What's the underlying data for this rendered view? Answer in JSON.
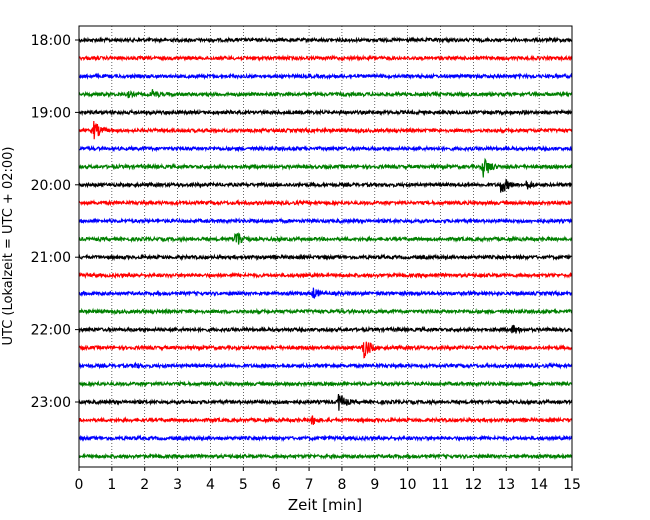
{
  "chart_data": {
    "type": "line",
    "title": "",
    "xlabel": "Zeit  [min]",
    "ylabel": "UTC (Lokalzeit = UTC + 02:00)",
    "xlim": [
      0,
      15
    ],
    "x_ticks": [
      "0",
      "1",
      "2",
      "3",
      "4",
      "5",
      "6",
      "7",
      "8",
      "9",
      "10",
      "11",
      "12",
      "13",
      "14",
      "15"
    ],
    "y_ticks": [
      "18:00",
      "19:00",
      "20:00",
      "21:00",
      "22:00",
      "23:00"
    ],
    "grid": "vertical dotted",
    "trace_colors": [
      "#000000",
      "#ff0000",
      "#0000ff",
      "#008000"
    ],
    "traces": [
      {
        "start": "18:00",
        "color": "#000000",
        "events": []
      },
      {
        "start": "18:15",
        "color": "#ff0000",
        "events": []
      },
      {
        "start": "18:30",
        "color": "#0000ff",
        "events": []
      },
      {
        "start": "18:45",
        "color": "#008000",
        "events": [
          {
            "t": 1.5,
            "amp": 4
          },
          {
            "t": 2.2,
            "amp": 6
          }
        ]
      },
      {
        "start": "19:00",
        "color": "#000000",
        "events": []
      },
      {
        "start": "19:15",
        "color": "#ff0000",
        "events": [
          {
            "t": 0.45,
            "amp": 10
          }
        ]
      },
      {
        "start": "19:30",
        "color": "#0000ff",
        "events": []
      },
      {
        "start": "19:45",
        "color": "#008000",
        "events": [
          {
            "t": 12.3,
            "amp": 12
          }
        ]
      },
      {
        "start": "20:00",
        "color": "#000000",
        "events": [
          {
            "t": 12.85,
            "amp": 10
          },
          {
            "t": 13.6,
            "amp": 6
          }
        ]
      },
      {
        "start": "20:15",
        "color": "#ff0000",
        "events": []
      },
      {
        "start": "20:30",
        "color": "#0000ff",
        "events": []
      },
      {
        "start": "20:45",
        "color": "#008000",
        "events": [
          {
            "t": 4.75,
            "amp": 11
          }
        ]
      },
      {
        "start": "21:00",
        "color": "#000000",
        "events": []
      },
      {
        "start": "21:15",
        "color": "#ff0000",
        "events": []
      },
      {
        "start": "21:30",
        "color": "#0000ff",
        "events": [
          {
            "t": 7.1,
            "amp": 7
          },
          {
            "t": 11.8,
            "amp": 3
          }
        ]
      },
      {
        "start": "21:45",
        "color": "#008000",
        "events": []
      },
      {
        "start": "22:00",
        "color": "#000000",
        "events": [
          {
            "t": 13.2,
            "amp": 6
          }
        ]
      },
      {
        "start": "22:15",
        "color": "#ff0000",
        "events": [
          {
            "t": 8.65,
            "amp": 12
          }
        ]
      },
      {
        "start": "22:30",
        "color": "#0000ff",
        "events": [
          {
            "t": 1.7,
            "amp": 4
          }
        ]
      },
      {
        "start": "22:45",
        "color": "#008000",
        "events": []
      },
      {
        "start": "23:00",
        "color": "#000000",
        "events": [
          {
            "t": 6.3,
            "amp": 3
          },
          {
            "t": 7.9,
            "amp": 10
          }
        ]
      },
      {
        "start": "23:15",
        "color": "#ff0000",
        "events": [
          {
            "t": 7.1,
            "amp": 6
          }
        ]
      },
      {
        "start": "23:30",
        "color": "#0000ff",
        "events": []
      },
      {
        "start": "23:45",
        "color": "#008000",
        "events": []
      }
    ]
  }
}
